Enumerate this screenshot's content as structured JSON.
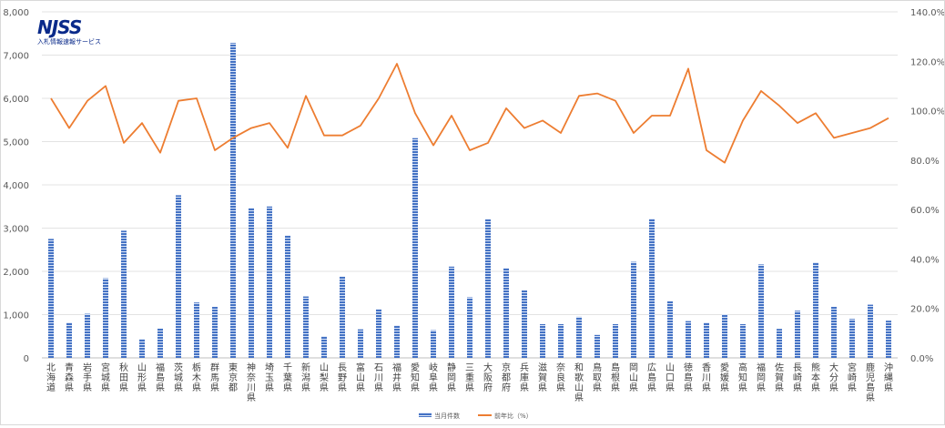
{
  "logo": {
    "mark": "NJSS",
    "subtitle": "入札情報速報サービス"
  },
  "chart_data": {
    "type": "bar",
    "categories": [
      "北海道",
      "青森県",
      "岩手県",
      "宮城県",
      "秋田県",
      "山形県",
      "福島県",
      "茨城県",
      "栃木県",
      "群馬県",
      "東京都",
      "神奈川県",
      "埼玉県",
      "千葉県",
      "新潟県",
      "山梨県",
      "長野県",
      "富山県",
      "石川県",
      "福井県",
      "愛知県",
      "岐阜県",
      "静岡県",
      "三重県",
      "大阪府",
      "京都府",
      "兵庫県",
      "滋賀県",
      "奈良県",
      "和歌山県",
      "鳥取県",
      "島根県",
      "岡山県",
      "広島県",
      "山口県",
      "徳島県",
      "香川県",
      "愛媛県",
      "高知県",
      "福岡県",
      "佐賀県",
      "長崎県",
      "熊本県",
      "大分県",
      "宮崎県",
      "鹿児島県",
      "沖縄県"
    ],
    "series": [
      {
        "name": "当月件数",
        "type": "bar",
        "axis": "left",
        "color": "#4472c4",
        "values": [
          2750,
          820,
          1020,
          1840,
          2940,
          440,
          680,
          3760,
          1280,
          1180,
          7280,
          3470,
          3500,
          2830,
          1420,
          500,
          1880,
          660,
          1130,
          750,
          5080,
          640,
          2110,
          1400,
          3210,
          2080,
          1560,
          780,
          780,
          950,
          530,
          780,
          2220,
          3220,
          1310,
          850,
          820,
          1010,
          780,
          2160,
          670,
          1090,
          2210,
          1180,
          900,
          1230,
          860
        ]
      },
      {
        "name": "前年比（%）",
        "type": "line",
        "axis": "right",
        "color": "#ed7d31",
        "values": [
          105,
          93,
          104,
          110,
          87,
          95,
          83,
          104,
          105,
          84,
          89,
          93,
          95,
          85,
          106,
          90,
          90,
          94,
          105,
          119,
          99,
          86,
          98,
          84,
          87,
          101,
          93,
          96,
          91,
          106,
          107,
          104,
          91,
          98,
          98,
          117,
          84,
          79,
          96,
          108,
          102,
          95,
          99,
          89,
          91,
          93,
          97
        ]
      }
    ],
    "y_left": {
      "min": 0,
      "max": 8000,
      "ticks": [
        "0",
        "1,000",
        "2,000",
        "3,000",
        "4,000",
        "5,000",
        "6,000",
        "7,000",
        "8,000"
      ]
    },
    "y_right": {
      "min": 0,
      "max": 140,
      "ticks": [
        "0.0%",
        "20.0%",
        "40.0%",
        "60.0%",
        "80.0%",
        "100.0%",
        "120.0%",
        "140.0%"
      ]
    },
    "grid": true,
    "legend_position": "bottom"
  }
}
